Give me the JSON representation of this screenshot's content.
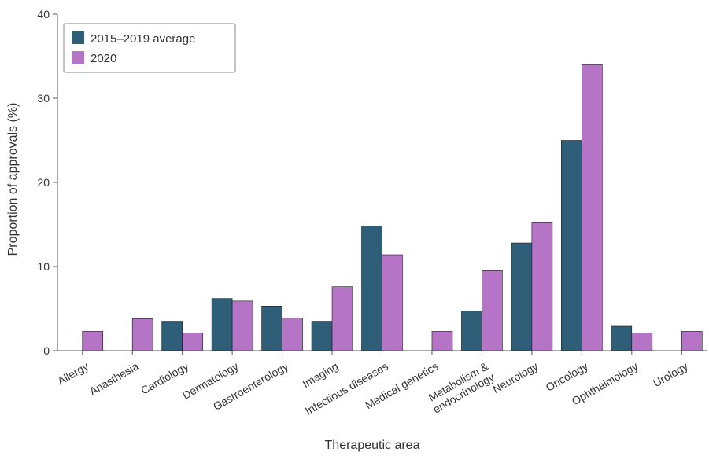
{
  "chart_data": {
    "type": "bar",
    "title": "",
    "xlabel": "Therapeutic area",
    "ylabel": "Proportion of approvals (%)",
    "ylim": [
      0,
      40
    ],
    "yticks": [
      0,
      10,
      20,
      30,
      40
    ],
    "grid": false,
    "legend_position": "top-left",
    "categories": [
      "Allergy",
      "Anasthesia",
      "Cardiology",
      "Dermatology",
      "Gastroenterology",
      "Imaging",
      "Infectious diseases",
      "Medical genetics",
      "Metabolism & endocrinology",
      "Neurology",
      "Oncology",
      "Ophthalmology",
      "Urology"
    ],
    "series": [
      {
        "name": "2015–2019 average",
        "color": "#2f5f78",
        "values": [
          0,
          0,
          3.5,
          6.2,
          5.3,
          3.5,
          14.8,
          0,
          4.7,
          12.8,
          25.0,
          2.9,
          0
        ]
      },
      {
        "name": "2020",
        "color": "#b574c6",
        "values": [
          2.3,
          3.8,
          2.1,
          5.9,
          3.9,
          7.6,
          11.4,
          2.3,
          9.5,
          15.2,
          34.0,
          2.1,
          2.3
        ]
      }
    ]
  }
}
